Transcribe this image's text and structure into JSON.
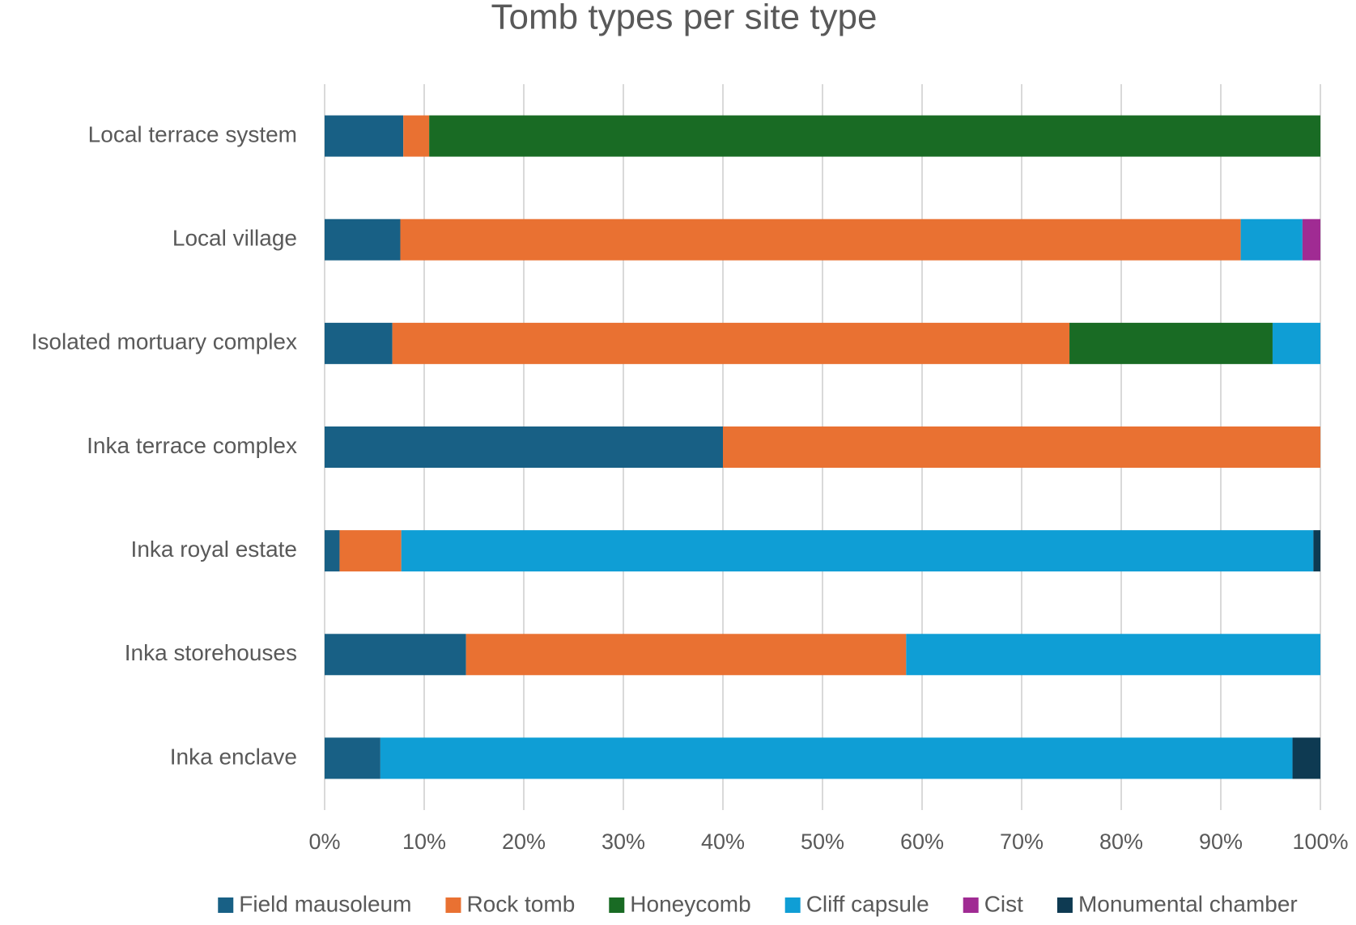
{
  "chart_data": {
    "type": "stacked-bar-horizontal",
    "title": "Tomb types per site type",
    "categories": [
      "Local terrace system",
      "Local village",
      "Isolated mortuary complex",
      "Inka terrace complex",
      "Inka royal estate",
      "Inka storehouses",
      "Inka enclave"
    ],
    "series": [
      {
        "name": "Field mausoleum",
        "color": "#186085",
        "values": [
          7.9,
          7.6,
          6.8,
          40,
          1.5,
          14.2,
          5.6
        ]
      },
      {
        "name": "Rock tomb",
        "color": "#e97132",
        "values": [
          2.6,
          84.4,
          68.0,
          60,
          6.2,
          44.2,
          0
        ]
      },
      {
        "name": "Honeycomb",
        "color": "#196b24",
        "values": [
          89.5,
          0,
          20.4,
          0,
          0,
          0,
          0
        ]
      },
      {
        "name": "Cliff capsule",
        "color": "#0f9ed5",
        "values": [
          0,
          6.2,
          4.8,
          0,
          91.6,
          41.6,
          91.6
        ]
      },
      {
        "name": "Cist",
        "color": "#a02b93",
        "values": [
          0,
          1.8,
          0,
          0,
          0,
          0,
          0
        ]
      },
      {
        "name": "Monumental chamber",
        "color": "#0e3a52",
        "values": [
          0,
          0,
          0,
          0,
          0.7,
          0,
          2.8
        ]
      }
    ],
    "xlim": [
      0,
      100
    ],
    "xticks": [
      {
        "value": 0,
        "label": "0%"
      },
      {
        "value": 10,
        "label": "10%"
      },
      {
        "value": 20,
        "label": "20%"
      },
      {
        "value": 30,
        "label": "30%"
      },
      {
        "value": 40,
        "label": "40%"
      },
      {
        "value": 50,
        "label": "50%"
      },
      {
        "value": 60,
        "label": "60%"
      },
      {
        "value": 70,
        "label": "70%"
      },
      {
        "value": 80,
        "label": "80%"
      },
      {
        "value": 90,
        "label": "90%"
      },
      {
        "value": 100,
        "label": "100%"
      }
    ],
    "grid": true,
    "legend": "bottom"
  }
}
